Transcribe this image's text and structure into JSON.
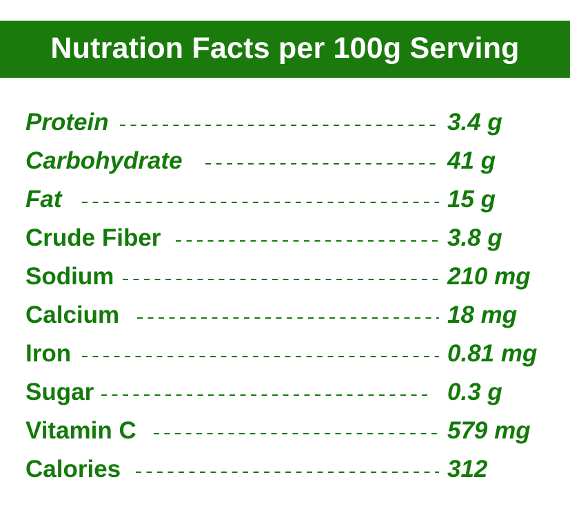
{
  "title": "Nutration Facts per 100g Serving",
  "colors": {
    "banner_background": "#1a7a0c",
    "banner_text": "#ffffff",
    "row_text": "#137a0a"
  },
  "rows": [
    {
      "label": "Protein",
      "value": "3.4 g"
    },
    {
      "label": "Carbohydrate",
      "value": "41 g"
    },
    {
      "label": "Fat",
      "value": "15 g"
    },
    {
      "label": "Crude Fiber",
      "value": "3.8 g"
    },
    {
      "label": "Sodium",
      "value": "210 mg"
    },
    {
      "label": "Calcium",
      "value": "18 mg"
    },
    {
      "label": "Iron",
      "value": "0.81 mg"
    },
    {
      "label": "Sugar",
      "value": "0.3 g"
    },
    {
      "label": "Vitamin C",
      "value": "579 mg"
    },
    {
      "label": "Calories",
      "value": "312"
    }
  ]
}
